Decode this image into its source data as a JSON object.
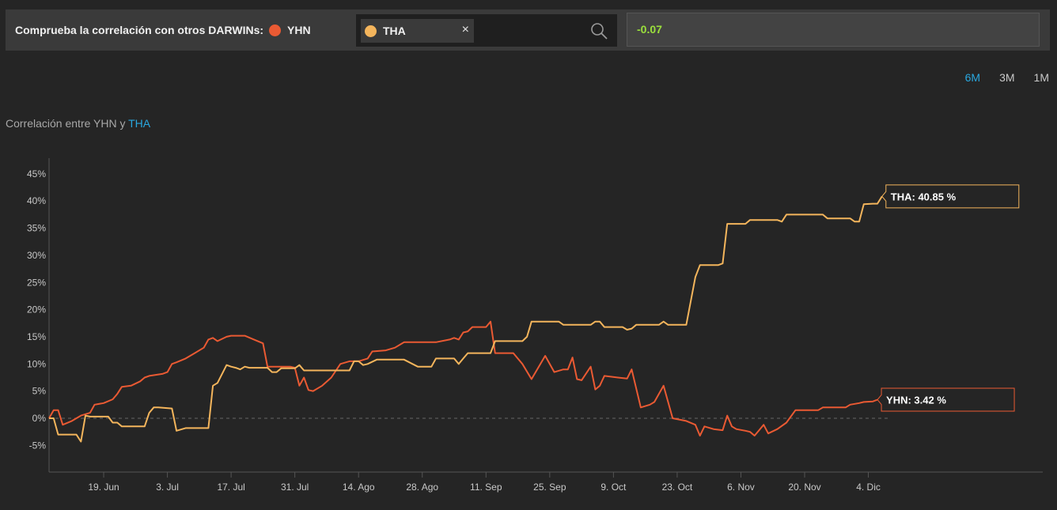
{
  "header": {
    "prompt": "Comprueba la correlación con otros DARWINs:",
    "main_darwin": "YHN",
    "selected_darwin": "THA",
    "close_label": "×",
    "correlation_value": "-0.07",
    "icons": {
      "search": "search-icon",
      "close": "close-icon"
    }
  },
  "ranges": {
    "r6m": "6M",
    "r3m": "3M",
    "r1m": "1M",
    "active": "6M"
  },
  "title": {
    "prefix": "Correlación entre YHN y ",
    "highlight": "THA"
  },
  "colors": {
    "yhn": "#ea5a33",
    "tha": "#f4b55c",
    "highlight": "#29a8e0",
    "value_positive": "#9be03c",
    "background": "#252525"
  },
  "chart_data": {
    "type": "line",
    "x_start": "2018-06-07",
    "x_ticks": [
      {
        "date": "2018-06-19",
        "label": "19. Jun"
      },
      {
        "date": "2018-07-03",
        "label": "3. Jul"
      },
      {
        "date": "2018-07-17",
        "label": "17. Jul"
      },
      {
        "date": "2018-07-31",
        "label": "31. Jul"
      },
      {
        "date": "2018-08-14",
        "label": "14. Ago"
      },
      {
        "date": "2018-08-28",
        "label": "28. Ago"
      },
      {
        "date": "2018-09-11",
        "label": "11. Sep"
      },
      {
        "date": "2018-09-25",
        "label": "25. Sep"
      },
      {
        "date": "2018-10-09",
        "label": "9. Oct"
      },
      {
        "date": "2018-10-23",
        "label": "23. Oct"
      },
      {
        "date": "2018-11-06",
        "label": "6. Nov"
      },
      {
        "date": "2018-11-20",
        "label": "20. Nov"
      },
      {
        "date": "2018-12-04",
        "label": "4. Dic"
      }
    ],
    "y_ticks": [
      -5,
      0,
      5,
      10,
      15,
      20,
      25,
      30,
      35,
      40,
      45
    ],
    "y_tick_labels": [
      "-5%",
      "0%",
      "5%",
      "10%",
      "15%",
      "20%",
      "25%",
      "30%",
      "35%",
      "40%",
      "45%"
    ],
    "ylim": [
      -10,
      47
    ],
    "series": [
      {
        "name": "YHN",
        "color": "#ea5a33",
        "end_label": "YHN: 3.42 %",
        "points": [
          [
            "2018-06-07",
            0
          ],
          [
            "2018-06-08",
            1.5
          ],
          [
            "2018-06-09",
            1.5
          ],
          [
            "2018-06-10",
            -1.2
          ],
          [
            "2018-06-12",
            -0.5
          ],
          [
            "2018-06-14",
            0.5
          ],
          [
            "2018-06-16",
            1
          ],
          [
            "2018-06-17",
            2.5
          ],
          [
            "2018-06-19",
            2.8
          ],
          [
            "2018-06-21",
            3.5
          ],
          [
            "2018-06-22",
            4.5
          ],
          [
            "2018-06-23",
            5.8
          ],
          [
            "2018-06-25",
            6
          ],
          [
            "2018-06-27",
            6.8
          ],
          [
            "2018-06-28",
            7.5
          ],
          [
            "2018-06-29",
            7.8
          ],
          [
            "2018-07-02",
            8.2
          ],
          [
            "2018-07-03",
            8.5
          ],
          [
            "2018-07-04",
            10
          ],
          [
            "2018-07-05",
            10.3
          ],
          [
            "2018-07-07",
            11
          ],
          [
            "2018-07-09",
            12
          ],
          [
            "2018-07-11",
            13
          ],
          [
            "2018-07-12",
            14.5
          ],
          [
            "2018-07-13",
            14.8
          ],
          [
            "2018-07-14",
            14.2
          ],
          [
            "2018-07-16",
            15
          ],
          [
            "2018-07-17",
            15.2
          ],
          [
            "2018-07-20",
            15.2
          ],
          [
            "2018-07-22",
            14.5
          ],
          [
            "2018-07-24",
            13.8
          ],
          [
            "2018-07-25",
            9.5
          ],
          [
            "2018-07-29",
            9.5
          ],
          [
            "2018-07-30",
            9.5
          ],
          [
            "2018-07-31",
            9.3
          ],
          [
            "2018-08-01",
            6
          ],
          [
            "2018-08-02",
            7.5
          ],
          [
            "2018-08-03",
            5.2
          ],
          [
            "2018-08-04",
            5
          ],
          [
            "2018-08-06",
            6
          ],
          [
            "2018-08-08",
            7.5
          ],
          [
            "2018-08-10",
            10
          ],
          [
            "2018-08-12",
            10.5
          ],
          [
            "2018-08-14",
            10.5
          ],
          [
            "2018-08-16",
            11
          ],
          [
            "2018-08-17",
            12.3
          ],
          [
            "2018-08-20",
            12.5
          ],
          [
            "2018-08-22",
            13
          ],
          [
            "2018-08-24",
            14
          ],
          [
            "2018-08-31",
            14
          ],
          [
            "2018-09-03",
            14.5
          ],
          [
            "2018-09-04",
            14.8
          ],
          [
            "2018-09-05",
            14.5
          ],
          [
            "2018-09-06",
            15.8
          ],
          [
            "2018-09-07",
            16
          ],
          [
            "2018-09-08",
            16.8
          ],
          [
            "2018-09-10",
            16.8
          ],
          [
            "2018-09-11",
            16.8
          ],
          [
            "2018-09-12",
            17.8
          ],
          [
            "2018-09-13",
            12
          ],
          [
            "2018-09-17",
            12
          ],
          [
            "2018-09-19",
            10
          ],
          [
            "2018-09-21",
            7.2
          ],
          [
            "2018-09-24",
            11.5
          ],
          [
            "2018-09-26",
            8.5
          ],
          [
            "2018-09-28",
            9
          ],
          [
            "2018-09-29",
            9
          ],
          [
            "2018-09-30",
            11.2
          ],
          [
            "2018-10-01",
            7.2
          ],
          [
            "2018-10-02",
            7
          ],
          [
            "2018-10-04",
            9.5
          ],
          [
            "2018-10-05",
            5.3
          ],
          [
            "2018-10-06",
            6
          ],
          [
            "2018-10-07",
            7.8
          ],
          [
            "2018-10-10",
            7.5
          ],
          [
            "2018-10-12",
            7.3
          ],
          [
            "2018-10-13",
            9
          ],
          [
            "2018-10-15",
            2
          ],
          [
            "2018-10-17",
            2.5
          ],
          [
            "2018-10-18",
            3
          ],
          [
            "2018-10-20",
            6
          ],
          [
            "2018-10-22",
            0
          ],
          [
            "2018-10-25",
            -0.5
          ],
          [
            "2018-10-27",
            -1.2
          ],
          [
            "2018-10-28",
            -3.2
          ],
          [
            "2018-10-29",
            -1.5
          ],
          [
            "2018-10-31",
            -2
          ],
          [
            "2018-11-02",
            -2.2
          ],
          [
            "2018-11-03",
            0.5
          ],
          [
            "2018-11-04",
            -1.5
          ],
          [
            "2018-11-05",
            -2
          ],
          [
            "2018-11-07",
            -2.3
          ],
          [
            "2018-11-08",
            -2.5
          ],
          [
            "2018-11-09",
            -3.2
          ],
          [
            "2018-11-10",
            -2.2
          ],
          [
            "2018-11-11",
            -1.2
          ],
          [
            "2018-11-12",
            -2.8
          ],
          [
            "2018-11-14",
            -2
          ],
          [
            "2018-11-16",
            -0.8
          ],
          [
            "2018-11-18",
            1.5
          ],
          [
            "2018-11-23",
            1.5
          ],
          [
            "2018-11-24",
            2
          ],
          [
            "2018-11-29",
            2
          ],
          [
            "2018-11-30",
            2.5
          ],
          [
            "2018-12-02",
            2.8
          ],
          [
            "2018-12-03",
            3
          ],
          [
            "2018-12-05",
            3.1
          ],
          [
            "2018-12-06",
            3.42
          ]
        ]
      },
      {
        "name": "THA",
        "color": "#f4b55c",
        "end_label": "THA: 40.85 %",
        "points": [
          [
            "2018-06-07",
            0
          ],
          [
            "2018-06-08",
            0
          ],
          [
            "2018-06-09",
            -3
          ],
          [
            "2018-06-13",
            -3
          ],
          [
            "2018-06-14",
            -4.3
          ],
          [
            "2018-06-15",
            0.5
          ],
          [
            "2018-06-16",
            0.3
          ],
          [
            "2018-06-20",
            0.3
          ],
          [
            "2018-06-21",
            -0.8
          ],
          [
            "2018-06-22",
            -0.8
          ],
          [
            "2018-06-23",
            -1.5
          ],
          [
            "2018-06-28",
            -1.5
          ],
          [
            "2018-06-29",
            1
          ],
          [
            "2018-06-30",
            2
          ],
          [
            "2018-07-01",
            2
          ],
          [
            "2018-07-04",
            1.8
          ],
          [
            "2018-07-05",
            -2.3
          ],
          [
            "2018-07-07",
            -1.8
          ],
          [
            "2018-07-08",
            -1.8
          ],
          [
            "2018-07-12",
            -1.8
          ],
          [
            "2018-07-13",
            6
          ],
          [
            "2018-07-14",
            6.5
          ],
          [
            "2018-07-16",
            9.8
          ],
          [
            "2018-07-17",
            9.5
          ],
          [
            "2018-07-18",
            9.3
          ],
          [
            "2018-07-19",
            9
          ],
          [
            "2018-07-20",
            9.5
          ],
          [
            "2018-07-21",
            9.3
          ],
          [
            "2018-07-25",
            9.3
          ],
          [
            "2018-07-26",
            8.5
          ],
          [
            "2018-07-27",
            8.5
          ],
          [
            "2018-07-28",
            9.2
          ],
          [
            "2018-07-31",
            9.2
          ],
          [
            "2018-08-01",
            9.8
          ],
          [
            "2018-08-02",
            8.8
          ],
          [
            "2018-08-12",
            8.8
          ],
          [
            "2018-08-13",
            10.5
          ],
          [
            "2018-08-14",
            10.5
          ],
          [
            "2018-08-15",
            9.8
          ],
          [
            "2018-08-16",
            10
          ],
          [
            "2018-08-18",
            10.8
          ],
          [
            "2018-08-24",
            10.8
          ],
          [
            "2018-08-27",
            9.5
          ],
          [
            "2018-08-30",
            9.5
          ],
          [
            "2018-08-31",
            11
          ],
          [
            "2018-09-04",
            11
          ],
          [
            "2018-09-05",
            10
          ],
          [
            "2018-09-06",
            11
          ],
          [
            "2018-09-07",
            12
          ],
          [
            "2018-09-12",
            12
          ],
          [
            "2018-09-13",
            14.2
          ],
          [
            "2018-09-19",
            14.2
          ],
          [
            "2018-09-20",
            15
          ],
          [
            "2018-09-21",
            17.8
          ],
          [
            "2018-09-27",
            17.8
          ],
          [
            "2018-09-28",
            17.2
          ],
          [
            "2018-10-04",
            17.2
          ],
          [
            "2018-10-05",
            17.8
          ],
          [
            "2018-10-06",
            17.8
          ],
          [
            "2018-10-07",
            16.8
          ],
          [
            "2018-10-11",
            16.8
          ],
          [
            "2018-10-12",
            16.3
          ],
          [
            "2018-10-13",
            16.5
          ],
          [
            "2018-10-14",
            17.2
          ],
          [
            "2018-10-19",
            17.2
          ],
          [
            "2018-10-20",
            17.8
          ],
          [
            "2018-10-21",
            17.2
          ],
          [
            "2018-10-25",
            17.2
          ],
          [
            "2018-10-27",
            26
          ],
          [
            "2018-10-28",
            28.2
          ],
          [
            "2018-11-01",
            28.2
          ],
          [
            "2018-11-02",
            28.5
          ],
          [
            "2018-11-03",
            35.8
          ],
          [
            "2018-11-07",
            35.8
          ],
          [
            "2018-11-08",
            36.5
          ],
          [
            "2018-11-14",
            36.5
          ],
          [
            "2018-11-15",
            36.2
          ],
          [
            "2018-11-16",
            37.5
          ],
          [
            "2018-11-24",
            37.5
          ],
          [
            "2018-11-25",
            36.8
          ],
          [
            "2018-11-30",
            36.8
          ],
          [
            "2018-12-01",
            36.2
          ],
          [
            "2018-12-02",
            36.2
          ],
          [
            "2018-12-03",
            39.4
          ],
          [
            "2018-12-05",
            39.5
          ],
          [
            "2018-12-06",
            39.5
          ],
          [
            "2018-12-07",
            40.85
          ]
        ]
      }
    ]
  }
}
